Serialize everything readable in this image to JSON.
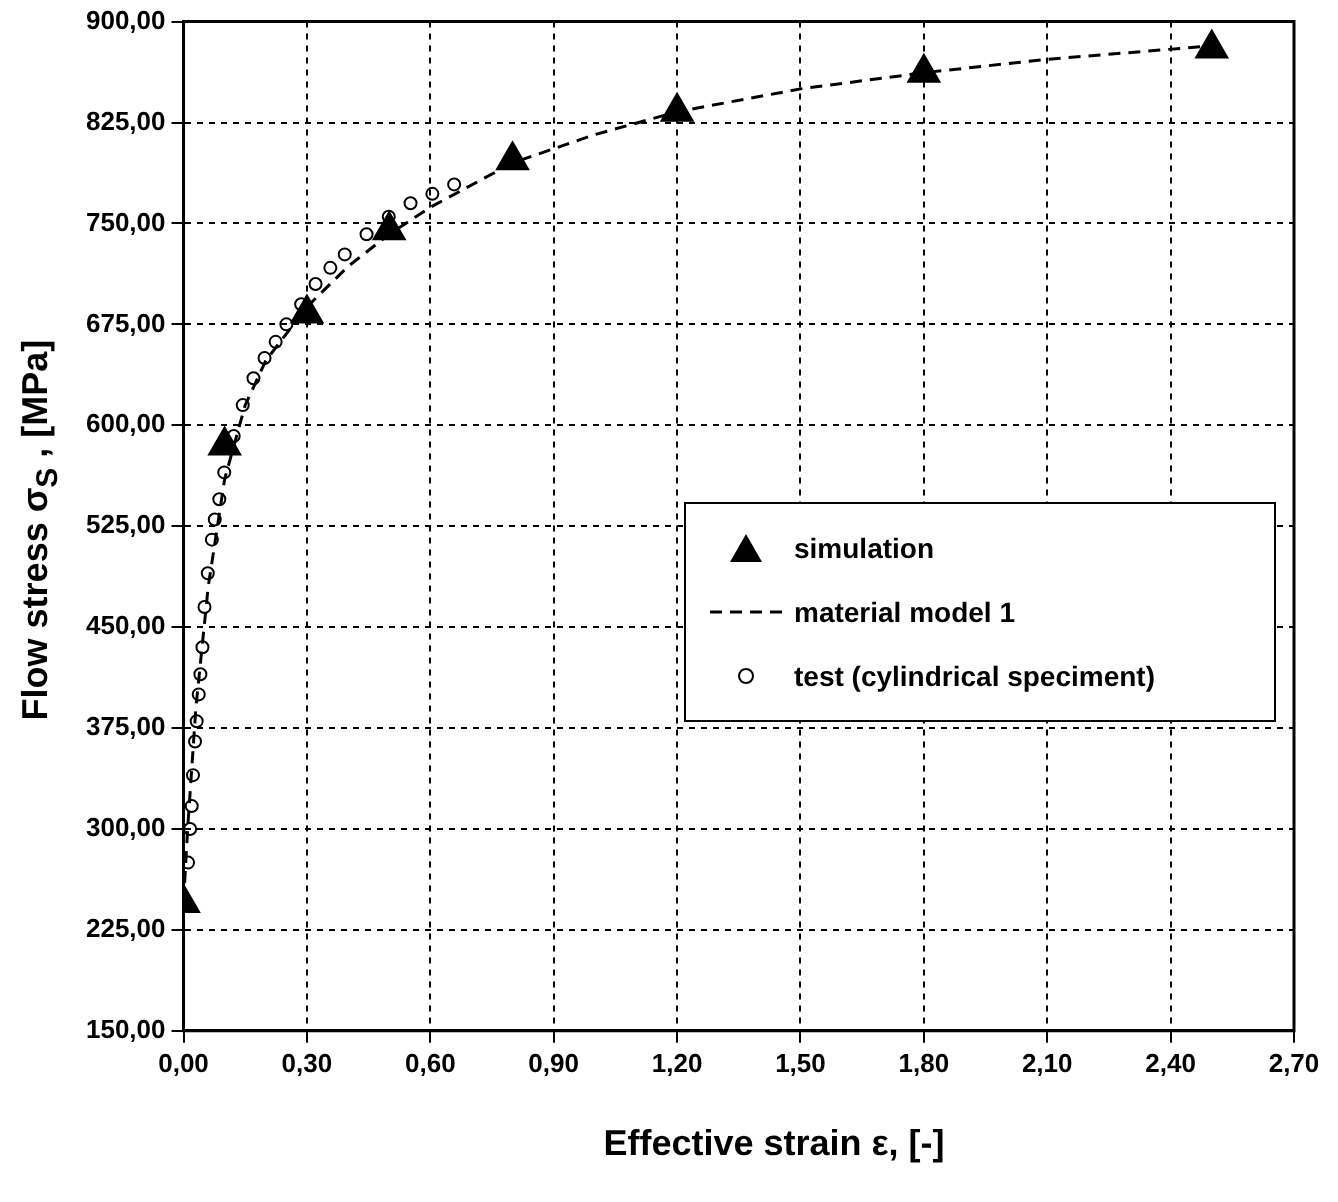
{
  "chart_data": {
    "type": "scatter",
    "xlabel": "Effective strain  ε, [-]",
    "ylabel": "Flow stress  σ$_{S}$ , [MPa]",
    "xlim": [
      0,
      2.7
    ],
    "ylim": [
      150,
      900
    ],
    "xticks": [
      {
        "value": 0,
        "label": "0,00"
      },
      {
        "value": 0.3,
        "label": "0,30"
      },
      {
        "value": 0.6,
        "label": "0,60"
      },
      {
        "value": 0.9,
        "label": "0,90"
      },
      {
        "value": 1.2,
        "label": "1,20"
      },
      {
        "value": 1.5,
        "label": "1,50"
      },
      {
        "value": 1.8,
        "label": "1,80"
      },
      {
        "value": 2.1,
        "label": "2,10"
      },
      {
        "value": 2.4,
        "label": "2,40"
      },
      {
        "value": 2.7,
        "label": "2,70"
      }
    ],
    "yticks": [
      {
        "value": 150,
        "label": "150,00"
      },
      {
        "value": 225,
        "label": "225,00"
      },
      {
        "value": 300,
        "label": "300,00"
      },
      {
        "value": 375,
        "label": "375,00"
      },
      {
        "value": 450,
        "label": "450,00"
      },
      {
        "value": 525,
        "label": "525,00"
      },
      {
        "value": 600,
        "label": "600,00"
      },
      {
        "value": 675,
        "label": "675,00"
      },
      {
        "value": 750,
        "label": "750,00"
      },
      {
        "value": 825,
        "label": "825,00"
      },
      {
        "value": 900,
        "label": "900,00"
      }
    ],
    "grid": true,
    "legend": "right",
    "series": [
      {
        "name": "simulation",
        "marker": "triangle",
        "color": "#000000",
        "x": [
          0,
          0.1,
          0.3,
          0.5,
          0.8,
          1.2,
          1.8,
          2.5
        ],
        "values": [
          245,
          585,
          683,
          745,
          797,
          833,
          862,
          880
        ]
      },
      {
        "name": "material model 1",
        "type": "line",
        "marker": "none",
        "line_style": "dashed",
        "color": "#000000",
        "x": [
          0,
          0.01,
          0.03,
          0.06,
          0.1,
          0.15,
          0.2,
          0.3,
          0.4,
          0.5,
          0.6,
          0.8,
          1.0,
          1.2,
          1.5,
          1.8,
          2.1,
          2.5
        ],
        "values": [
          245,
          300,
          390,
          480,
          560,
          615,
          648,
          688,
          718,
          742,
          762,
          795,
          816,
          833,
          850,
          862,
          872,
          882
        ]
      },
      {
        "name": "test (cylindrical speciment)",
        "type": "scatter",
        "marker": "circle",
        "color": "#000000",
        "x": [
          0.011,
          0.016,
          0.02,
          0.023,
          0.028,
          0.032,
          0.037,
          0.041,
          0.046,
          0.051,
          0.059,
          0.069,
          0.076,
          0.087,
          0.099,
          0.122,
          0.144,
          0.17,
          0.197,
          0.224,
          0.25,
          0.286,
          0.321,
          0.357,
          0.392,
          0.445,
          0.499,
          0.552,
          0.605,
          0.658
        ],
        "values": [
          275,
          300,
          317,
          340,
          365,
          380,
          400,
          415,
          435,
          465,
          490,
          515,
          530,
          545,
          565,
          592,
          615,
          635,
          650,
          662,
          675,
          690,
          705,
          717,
          727,
          742,
          755,
          765,
          772,
          779
        ]
      }
    ]
  }
}
